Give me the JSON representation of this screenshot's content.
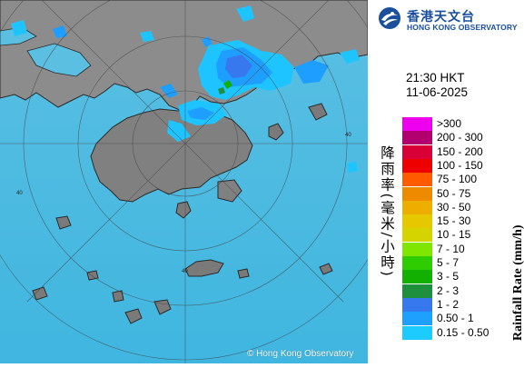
{
  "logo": {
    "name_zh": "香港天文台",
    "name_en": "HONG KONG OBSERVATORY",
    "brand_color": "#1b4f9c",
    "icon": "hko-logo-icon"
  },
  "timestamp": {
    "time": "21:30 HKT",
    "date": "11-06-2025"
  },
  "legend": {
    "title_en": "Rainfall Rate (mm/h)",
    "title_zh": "降雨率(毫米/小時)",
    "items": [
      {
        "label": ">300",
        "color": "#ee00ee"
      },
      {
        "label": "200 - 300",
        "color": "#b2006f"
      },
      {
        "label": "150 - 200",
        "color": "#d80037"
      },
      {
        "label": "100 - 150",
        "color": "#ee0000"
      },
      {
        "label": "75 - 100",
        "color": "#ff5a00"
      },
      {
        "label": "50 - 75",
        "color": "#ee8a00"
      },
      {
        "label": "30 - 50",
        "color": "#eeae00"
      },
      {
        "label": "15 - 30",
        "color": "#e6c800"
      },
      {
        "label": "10 - 15",
        "color": "#d4d400"
      },
      {
        "label": "7 - 10",
        "color": "#7ee600"
      },
      {
        "label": "5 - 7",
        "color": "#2ecc00"
      },
      {
        "label": "3 - 5",
        "color": "#12b000"
      },
      {
        "label": "2 - 3",
        "color": "#1e8f3c"
      },
      {
        "label": "1 - 2",
        "color": "#3878ee"
      },
      {
        "label": "0.50 - 1",
        "color": "#1ea0ff"
      },
      {
        "label": "0.15 - 0.50",
        "color": "#1ecbff"
      }
    ]
  },
  "map": {
    "range_ring_labels": [
      "40",
      "40",
      "40"
    ],
    "sea_color": "#52c3e8",
    "land_color": "#8a8a8a",
    "copyright": "© Hong Kong Observatory"
  }
}
